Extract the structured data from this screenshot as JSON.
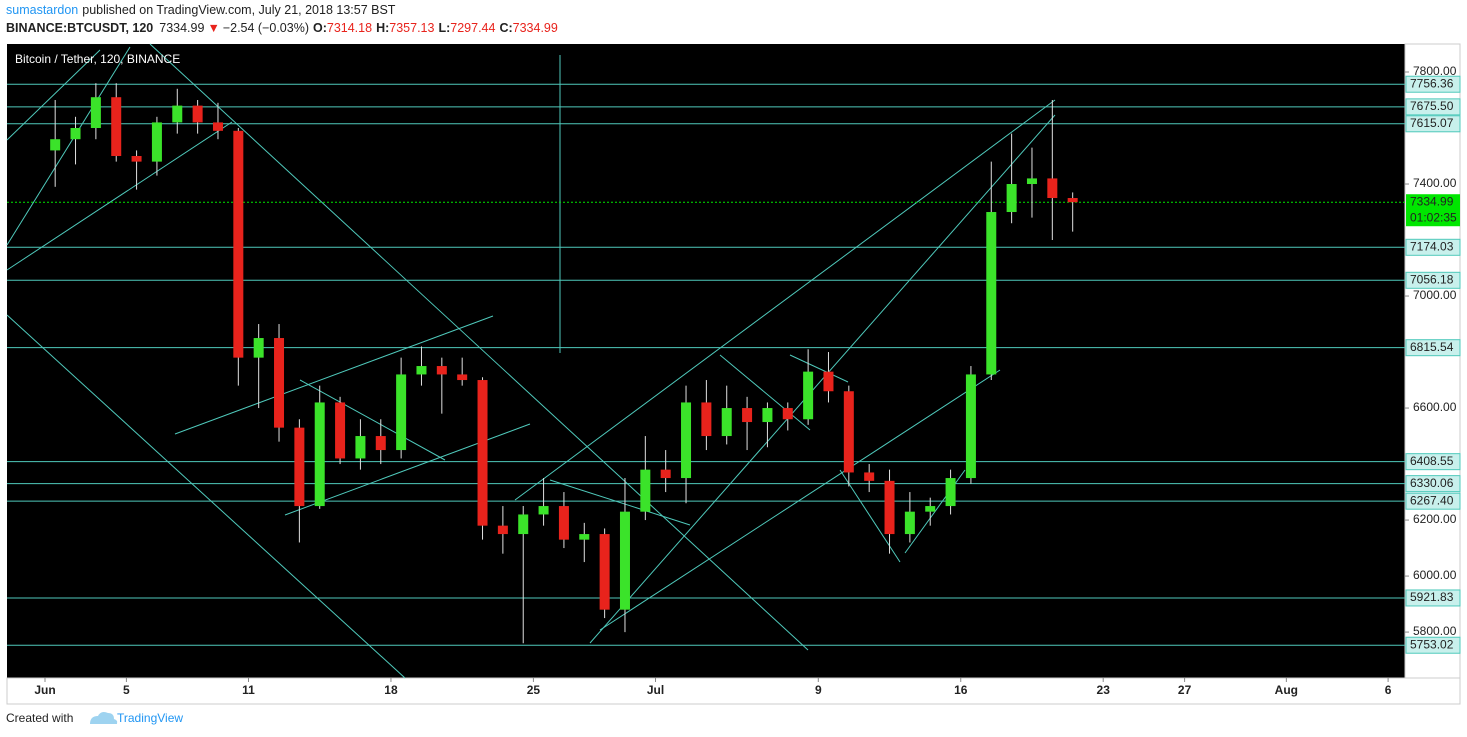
{
  "header": {
    "author": "sumastardon",
    "published": "published on TradingView.com, July 21, 2018 13:57 BST",
    "symbol": "BINANCE:BTCUSDT, 120",
    "last": "7334.99",
    "arrow": "▼",
    "change": "−2.54 (−0.03%)",
    "ohlc": [
      {
        "label": "O:",
        "value": "7314.18"
      },
      {
        "label": "H:",
        "value": "7357.13"
      },
      {
        "label": "L:",
        "value": "7297.44"
      },
      {
        "label": "C:",
        "value": "7334.99"
      }
    ]
  },
  "chart_data": {
    "type": "candlestick",
    "title": "Bitcoin / Tether, 120, BINANCE",
    "x": [
      "Jun 1",
      "Jun 2",
      "Jun 3",
      "Jun 4",
      "Jun 5",
      "Jun 6",
      "Jun 7",
      "Jun 8",
      "Jun 9",
      "Jun 10",
      "Jun 11",
      "Jun 12",
      "Jun 13",
      "Jun 14",
      "Jun 15",
      "Jun 16",
      "Jun 17",
      "Jun 18",
      "Jun 19",
      "Jun 20",
      "Jun 21",
      "Jun 22",
      "Jun 23",
      "Jun 24",
      "Jun 25",
      "Jun 26",
      "Jun 27",
      "Jun 28",
      "Jun 29",
      "Jun 30",
      "Jul 1",
      "Jul 2",
      "Jul 3",
      "Jul 4",
      "Jul 5",
      "Jul 6",
      "Jul 7",
      "Jul 8",
      "Jul 9",
      "Jul 10",
      "Jul 11",
      "Jul 12",
      "Jul 13",
      "Jul 14",
      "Jul 15",
      "Jul 16",
      "Jul 17",
      "Jul 18",
      "Jul 19",
      "Jul 20",
      "Jul 21"
    ],
    "open": [
      7520,
      7560,
      7600,
      7710,
      7500,
      7480,
      7620,
      7680,
      7620,
      7590,
      6780,
      6850,
      6530,
      6250,
      6620,
      6420,
      6500,
      6450,
      6720,
      6750,
      6720,
      6700,
      6180,
      6150,
      6220,
      6250,
      6130,
      6150,
      5880,
      6230,
      6380,
      6350,
      6620,
      6500,
      6600,
      6550,
      6600,
      6560,
      6730,
      6660,
      6370,
      6340,
      6150,
      6230,
      6250,
      6350,
      6720,
      7300,
      7400,
      7420,
      7350
    ],
    "high": [
      7700,
      7640,
      7760,
      7760,
      7520,
      7640,
      7740,
      7700,
      7690,
      7600,
      6900,
      6900,
      6560,
      6680,
      6640,
      6560,
      6560,
      6780,
      6820,
      6780,
      6780,
      6710,
      6250,
      6250,
      6350,
      6300,
      6190,
      6170,
      6350,
      6500,
      6450,
      6680,
      6700,
      6680,
      6640,
      6620,
      6620,
      6810,
      6800,
      6680,
      6400,
      6380,
      6300,
      6280,
      6380,
      6750,
      7480,
      7580,
      7530,
      7700,
      7370
    ],
    "low": [
      7390,
      7470,
      7560,
      7480,
      7380,
      7430,
      7580,
      7580,
      7560,
      6680,
      6600,
      6480,
      6120,
      6240,
      6400,
      6380,
      6400,
      6420,
      6680,
      6580,
      6680,
      6130,
      6080,
      5760,
      6180,
      6100,
      6050,
      5850,
      5800,
      6200,
      6300,
      6260,
      6450,
      6470,
      6450,
      6460,
      6520,
      6540,
      6620,
      6320,
      6300,
      6080,
      6120,
      6180,
      6220,
      6330,
      6700,
      7260,
      7280,
      7200,
      7230
    ],
    "close": [
      7560,
      7600,
      7710,
      7500,
      7480,
      7620,
      7680,
      7620,
      7590,
      6780,
      6850,
      6530,
      6250,
      6620,
      6420,
      6500,
      6450,
      6720,
      6750,
      6720,
      6700,
      6180,
      6150,
      6220,
      6250,
      6130,
      6150,
      5880,
      6230,
      6380,
      6350,
      6620,
      6500,
      6600,
      6550,
      6600,
      6560,
      6730,
      6660,
      6370,
      6340,
      6150,
      6230,
      6250,
      6350,
      6720,
      7300,
      7400,
      7420,
      7350,
      7334.99
    ],
    "up_color": "#3be32a",
    "down_color": "#e8231c",
    "wick_color": "#e0e0e0",
    "level_color": "#4fc9bb",
    "ylim": [
      5636,
      7900
    ],
    "yticks": [
      {
        "value": 5800,
        "label": "5800.00"
      },
      {
        "value": 6000,
        "label": "6000.00"
      },
      {
        "value": 6200,
        "label": "6200.00"
      },
      {
        "value": 6600,
        "label": "6600.00"
      },
      {
        "value": 7000,
        "label": "7000.00"
      },
      {
        "value": 7400,
        "label": "7400.00"
      },
      {
        "value": 7800,
        "label": "7800.00"
      }
    ],
    "xticks": [
      {
        "value": "Jun 1",
        "label": "Jun"
      },
      {
        "value": "Jun 5",
        "label": "5"
      },
      {
        "value": "Jun 11",
        "label": "11"
      },
      {
        "value": "Jun 18",
        "label": "18"
      },
      {
        "value": "Jun 25",
        "label": "25"
      },
      {
        "value": "Jul 1",
        "label": "Jul"
      },
      {
        "value": "Jul 9",
        "label": "9"
      },
      {
        "value": "Jul 16",
        "label": "16"
      },
      {
        "value": "Jul 23",
        "label": "23"
      },
      {
        "value": "Jul 27",
        "label": "27"
      },
      {
        "value": "Aug 1",
        "label": "Aug"
      },
      {
        "value": "Aug 6",
        "label": "6"
      }
    ],
    "levels": [
      {
        "value": 7756.36,
        "label": "7756.36"
      },
      {
        "value": 7675.5,
        "label": "7675.50"
      },
      {
        "value": 7615.07,
        "label": "7615.07"
      },
      {
        "value": 7174.03,
        "label": "7174.03"
      },
      {
        "value": 7056.18,
        "label": "7056.18"
      },
      {
        "value": 6815.54,
        "label": "6815.54"
      },
      {
        "value": 6408.55,
        "label": "6408.55"
      },
      {
        "value": 6330.06,
        "label": "6330.06"
      },
      {
        "value": 6267.4,
        "label": "6267.40"
      },
      {
        "value": 5921.83,
        "label": "5921.83"
      },
      {
        "value": 5753.02,
        "label": "5753.02"
      }
    ],
    "last_price": 7334.99,
    "last_color": "#00e600",
    "countdown": "01:02:35",
    "grid": false
  },
  "footer": {
    "created": "Created with",
    "brand": "TradingView"
  }
}
